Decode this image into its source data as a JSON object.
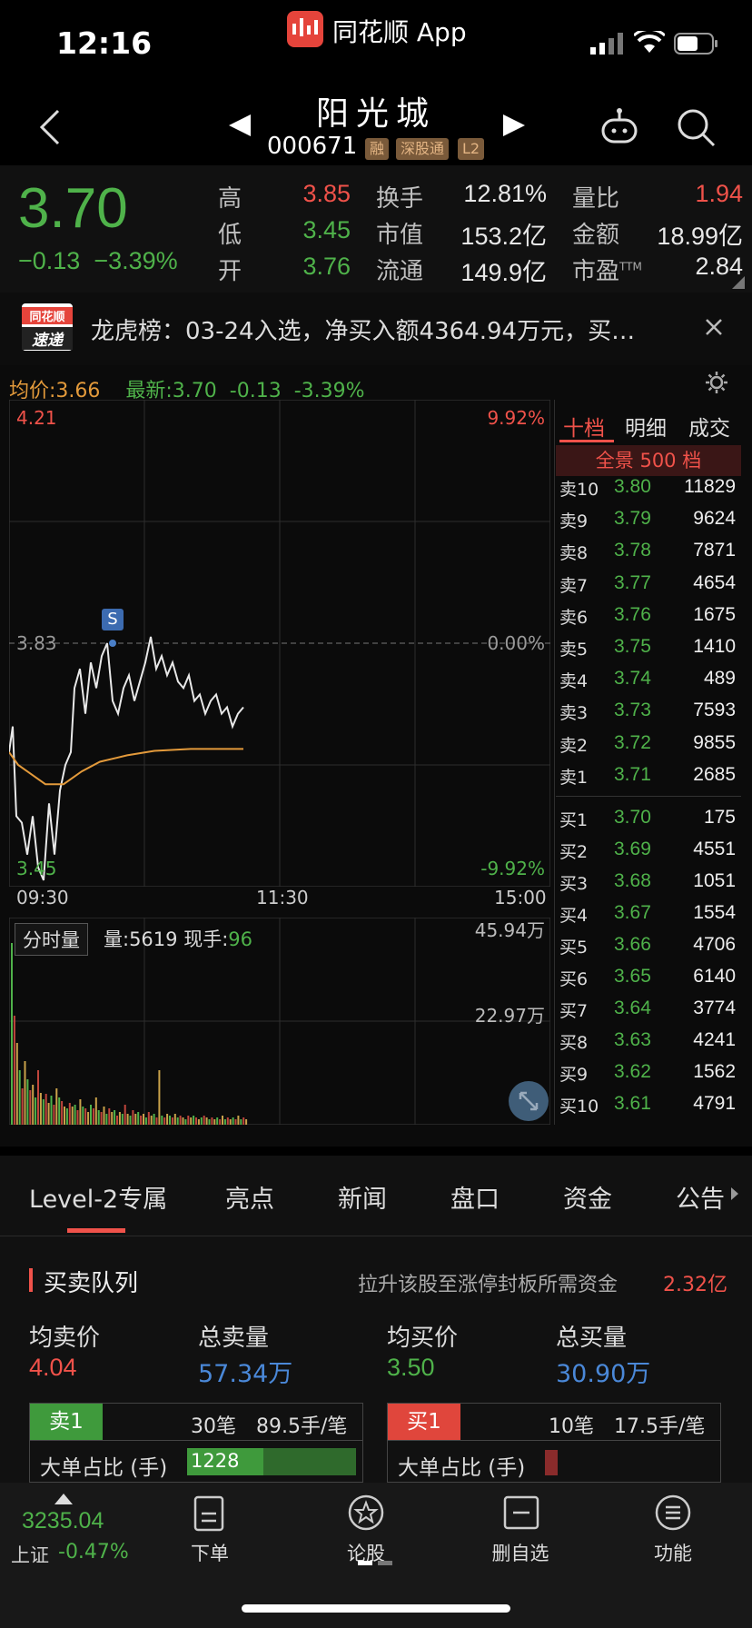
{
  "status_bar": {
    "time": "12:16",
    "app_name": "同花顺 App"
  },
  "header": {
    "name": "阳光城",
    "code": "000671",
    "tags": [
      "融",
      "深股通",
      "L2"
    ]
  },
  "quote": {
    "price": "3.70",
    "change": "−0.13",
    "change_pct": "−3.39%",
    "fields": [
      {
        "label": "高",
        "value": "3.85",
        "color": "#f0524a"
      },
      {
        "label": "低",
        "value": "3.45",
        "color": "#4fb24a"
      },
      {
        "label": "开",
        "value": "3.76",
        "color": "#4fb24a"
      },
      {
        "label": "换手",
        "value": "12.81%",
        "color": "#e8e8e8"
      },
      {
        "label": "市值",
        "value": "153.2亿",
        "color": "#e8e8e8"
      },
      {
        "label": "流通",
        "value": "149.9亿",
        "color": "#e8e8e8"
      },
      {
        "label": "量比",
        "value": "1.94",
        "color": "#f0524a"
      },
      {
        "label": "金额",
        "value": "18.99亿",
        "color": "#e8e8e8"
      },
      {
        "label": "市盈",
        "value": "2.84",
        "color": "#e8e8e8",
        "sup": "TTM"
      }
    ]
  },
  "news": {
    "logo_top": "同花顺",
    "logo_bottom": "速递",
    "text": "龙虎榜：03-24入选，净买入额4364.94万元，买…"
  },
  "chart_legend": {
    "avg": "均价:3.66",
    "latest": "最新:3.70",
    "latest_chg": "-0.13",
    "latest_pct": "-3.39%"
  },
  "chart_labels": {
    "high": "4.21",
    "mid": "3.83",
    "low": "3.45",
    "pct_high": "9.92%",
    "pct_mid": "0.00%",
    "pct_low": "-9.92%",
    "t_start": "09:30",
    "t_mid": "11:30",
    "t_end": "15:00",
    "marker": "S"
  },
  "volume_panel": {
    "tag": "分时量",
    "volume": "量:5619",
    "hand_label": "现手:",
    "hand": "96",
    "max": "45.94万",
    "mid": "22.97万"
  },
  "orderbook": {
    "tabs": [
      "十档",
      "明细",
      "成交"
    ],
    "panorama": "全景 500 档",
    "sells": [
      {
        "label": "卖10",
        "price": "3.80",
        "vol": "11829"
      },
      {
        "label": "卖9",
        "price": "3.79",
        "vol": "9624"
      },
      {
        "label": "卖8",
        "price": "3.78",
        "vol": "7871"
      },
      {
        "label": "卖7",
        "price": "3.77",
        "vol": "4654"
      },
      {
        "label": "卖6",
        "price": "3.76",
        "vol": "1675"
      },
      {
        "label": "卖5",
        "price": "3.75",
        "vol": "1410"
      },
      {
        "label": "卖4",
        "price": "3.74",
        "vol": "489"
      },
      {
        "label": "卖3",
        "price": "3.73",
        "vol": "7593"
      },
      {
        "label": "卖2",
        "price": "3.72",
        "vol": "9855"
      },
      {
        "label": "卖1",
        "price": "3.71",
        "vol": "2685"
      }
    ],
    "buys": [
      {
        "label": "买1",
        "price": "3.70",
        "vol": "175"
      },
      {
        "label": "买2",
        "price": "3.69",
        "vol": "4551"
      },
      {
        "label": "买3",
        "price": "3.68",
        "vol": "1051"
      },
      {
        "label": "买4",
        "price": "3.67",
        "vol": "1554"
      },
      {
        "label": "买5",
        "price": "3.66",
        "vol": "4706"
      },
      {
        "label": "买6",
        "price": "3.65",
        "vol": "6140"
      },
      {
        "label": "买7",
        "price": "3.64",
        "vol": "3774"
      },
      {
        "label": "买8",
        "price": "3.63",
        "vol": "4241"
      },
      {
        "label": "买9",
        "price": "3.62",
        "vol": "1562"
      },
      {
        "label": "买10",
        "price": "3.61",
        "vol": "4791"
      }
    ]
  },
  "tabs": [
    "Level-2专属",
    "亮点",
    "新闻",
    "盘口",
    "资金",
    "公告"
  ],
  "queue": {
    "title": "买卖队列",
    "hint": "拉升该股至涨停封板所需资金",
    "hint_value": "2.32亿",
    "avg_sell_label": "均卖价",
    "avg_sell": "4.04",
    "total_sell_label": "总卖量",
    "total_sell": "57.34万",
    "avg_buy_label": "均买价",
    "avg_buy": "3.50",
    "total_buy_label": "总买量",
    "total_buy": "30.90万",
    "sell1": {
      "tag": "卖1",
      "count": "30笔",
      "per": "89.5手/笔",
      "big_label": "大单占比 (手)",
      "big_value": "1228"
    },
    "buy1": {
      "tag": "买1",
      "count": "10笔",
      "per": "17.5手/笔",
      "big_label": "大单占比 (手)"
    }
  },
  "bottom_nav": {
    "index_value": "3235.04",
    "index_name": "上证",
    "index_pct": "-0.47%",
    "items": [
      {
        "label": "下单",
        "icon": "order-doc-icon"
      },
      {
        "label": "论股",
        "icon": "discuss-star-icon"
      },
      {
        "label": "删自选",
        "icon": "remove-watchlist-icon"
      },
      {
        "label": "功能",
        "icon": "menu-icon"
      }
    ]
  },
  "chart_data": {
    "type": "line",
    "x_ticks": [
      "09:30",
      "11:30",
      "15:00"
    ],
    "ylim": [
      3.45,
      4.21
    ],
    "reference_price": 3.83,
    "series": [
      {
        "name": "均价",
        "values": [
          3.66
        ]
      },
      {
        "name": "最新",
        "values": [
          3.7
        ]
      }
    ]
  }
}
